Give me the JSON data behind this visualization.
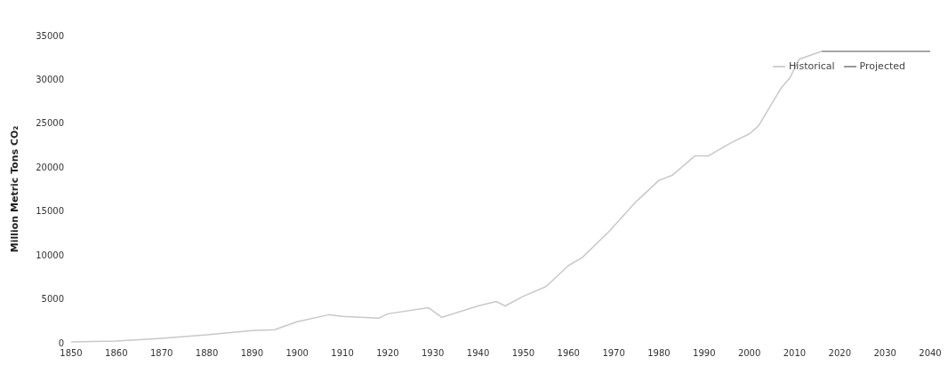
{
  "chart_data": {
    "type": "line",
    "ylabel": "Million Metric Tons CO₂",
    "xlim": [
      1850,
      2040
    ],
    "xticks": [
      1850,
      1860,
      1870,
      1880,
      1890,
      1900,
      1910,
      1920,
      1930,
      1940,
      1950,
      1960,
      1970,
      1980,
      1990,
      2000,
      2010,
      2020,
      2030,
      2040
    ],
    "ylim": [
      0,
      35000
    ],
    "yticks": [
      0,
      5000,
      10000,
      15000,
      20000,
      25000,
      30000,
      35000
    ],
    "legend": "top right",
    "marker": "none",
    "line_style": "solid",
    "series": [
      {
        "name": "Historical",
        "color": "#c8c8c8",
        "x": [
          1850,
          1860,
          1870,
          1880,
          1890,
          1895,
          1900,
          1907,
          1910,
          1918,
          1920,
          1929,
          1932,
          1940,
          1944,
          1946,
          1950,
          1955,
          1960,
          1963,
          1969,
          1975,
          1980,
          1983,
          1988,
          1991,
          1996,
          2000,
          2002,
          2007,
          2009,
          2011,
          2016
        ],
        "values": [
          100,
          200,
          500,
          900,
          1400,
          1500,
          2400,
          3200,
          3000,
          2800,
          3300,
          4000,
          2900,
          4200,
          4700,
          4200,
          5300,
          6400,
          8800,
          9700,
          12700,
          16100,
          18500,
          19100,
          21300,
          21300,
          22800,
          23800,
          24700,
          29000,
          30200,
          32300,
          33200
        ]
      },
      {
        "name": "Projected",
        "color": "#8a8a8a",
        "x": [
          2016,
          2040
        ],
        "values": [
          33200,
          33200
        ]
      }
    ]
  }
}
